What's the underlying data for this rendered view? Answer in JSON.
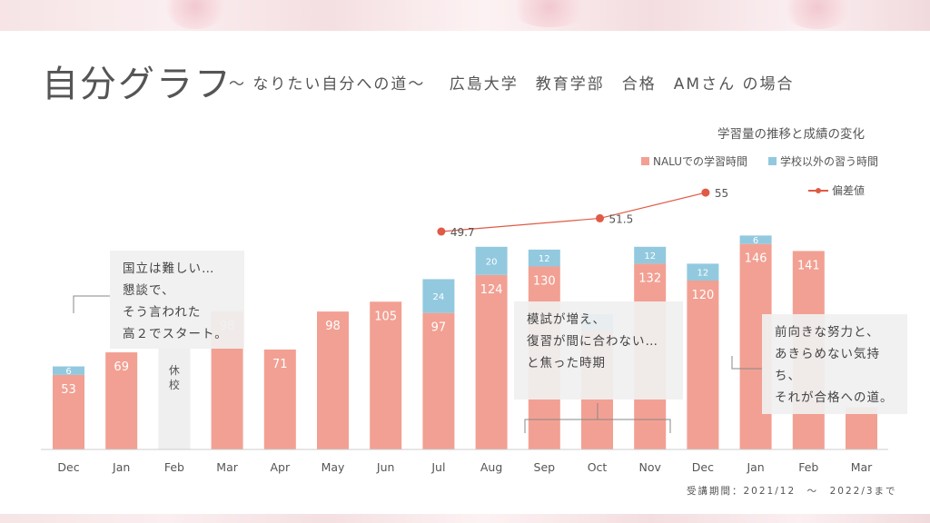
{
  "header": {
    "title": "自分グラフ",
    "subtitle": "～ なりたい自分への道～　 広島大学　教育学部　合格　AMさん の場合"
  },
  "chart_title": "学習量の推移と成績の変化",
  "legend": {
    "study_nalu": "NALUでの学習時間",
    "study_other": "学校以外の習う時間",
    "deviation": "偏差値"
  },
  "colors": {
    "nalu": "#f2a093",
    "other": "#92c9df",
    "deviation": "#e05a45",
    "rest": "#efefef"
  },
  "notes": {
    "note1": "国立は難しい…\n懇談で、\nそう言われた\n高２でスタート。",
    "note2": "模試が増え、\n復習が間に合わない…\nと焦った時期",
    "note3": "前向きな努力と、\nあきらめない気持ち、\nそれが合格への道。"
  },
  "footnote": "受講期間：2021/12　～　2022/3まで",
  "chart_data": {
    "type": "bar",
    "categories": [
      "Dec",
      "Jan",
      "Feb",
      "Mar",
      "Apr",
      "May",
      "Jun",
      "Jul",
      "Aug",
      "Sep",
      "Oct",
      "Nov",
      "Dec",
      "Jan",
      "Feb",
      "Mar"
    ],
    "series": [
      {
        "name": "NALUでの学習時間",
        "values": [
          53,
          69,
          null,
          98,
          71,
          98,
          105,
          97,
          124,
          130,
          84,
          132,
          120,
          146,
          141,
          30
        ]
      },
      {
        "name": "学校以外の習う時間",
        "values": [
          6,
          0,
          null,
          0,
          0,
          0,
          0,
          24,
          20,
          12,
          12,
          12,
          12,
          6,
          0,
          0
        ]
      }
    ],
    "bar_labels": [
      "53",
      "69",
      "",
      "98",
      "71",
      "98",
      "105",
      "97",
      "124",
      "130",
      "",
      "132",
      "120",
      "146",
      "141",
      ""
    ],
    "other_labels": [
      "6",
      "",
      "",
      "",
      "",
      "",
      "",
      "24",
      "20",
      "12",
      "",
      "12",
      "12",
      "6",
      "",
      ""
    ],
    "rest": {
      "category_index": 2,
      "label": "休\n校"
    },
    "line": {
      "name": "偏差値",
      "points": [
        {
          "index": 7,
          "value": 49.7,
          "label": "49.7"
        },
        {
          "index": 10,
          "value": 51.5,
          "label": "51.5"
        },
        {
          "index": 12,
          "value": 55,
          "label": "55"
        }
      ]
    }
  }
}
